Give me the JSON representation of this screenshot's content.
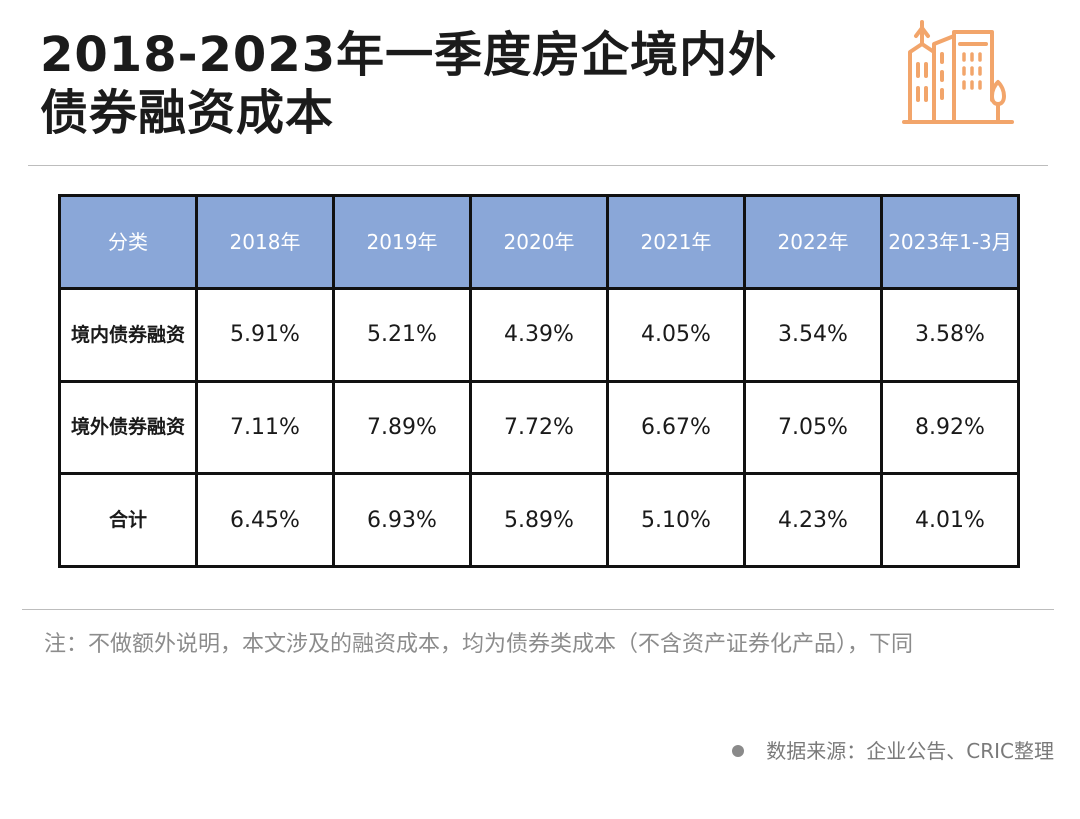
{
  "title_lines": [
    "2018-2023年一季度房企境内外",
    "债券融资成本"
  ],
  "chart_data": {
    "type": "table",
    "columns": [
      "分类",
      "2018年",
      "2019年",
      "2020年",
      "2021年",
      "2022年",
      "2023年1-3月"
    ],
    "rows": [
      {
        "label": "境内债券融资",
        "values": [
          "5.91%",
          "5.21%",
          "4.39%",
          "4.05%",
          "3.54%",
          "3.58%"
        ]
      },
      {
        "label": "境外债券融资",
        "values": [
          "7.11%",
          "7.89%",
          "7.72%",
          "6.67%",
          "7.05%",
          "8.92%"
        ]
      },
      {
        "label": "合计",
        "values": [
          "6.45%",
          "6.93%",
          "5.89%",
          "5.10%",
          "4.23%",
          "4.01%"
        ]
      }
    ]
  },
  "note": "注：不做额外说明，本文涉及的融资成本，均为债券类成本（不含资产证券化产品），下同",
  "source": "数据来源：企业公告、CRIC整理",
  "colors": {
    "header_bg": "#8aa7d8",
    "logo": "#f2a56b",
    "note": "#8c8c8c"
  },
  "icons": {
    "logo": "city-buildings-icon",
    "bullet": "dot-icon"
  }
}
